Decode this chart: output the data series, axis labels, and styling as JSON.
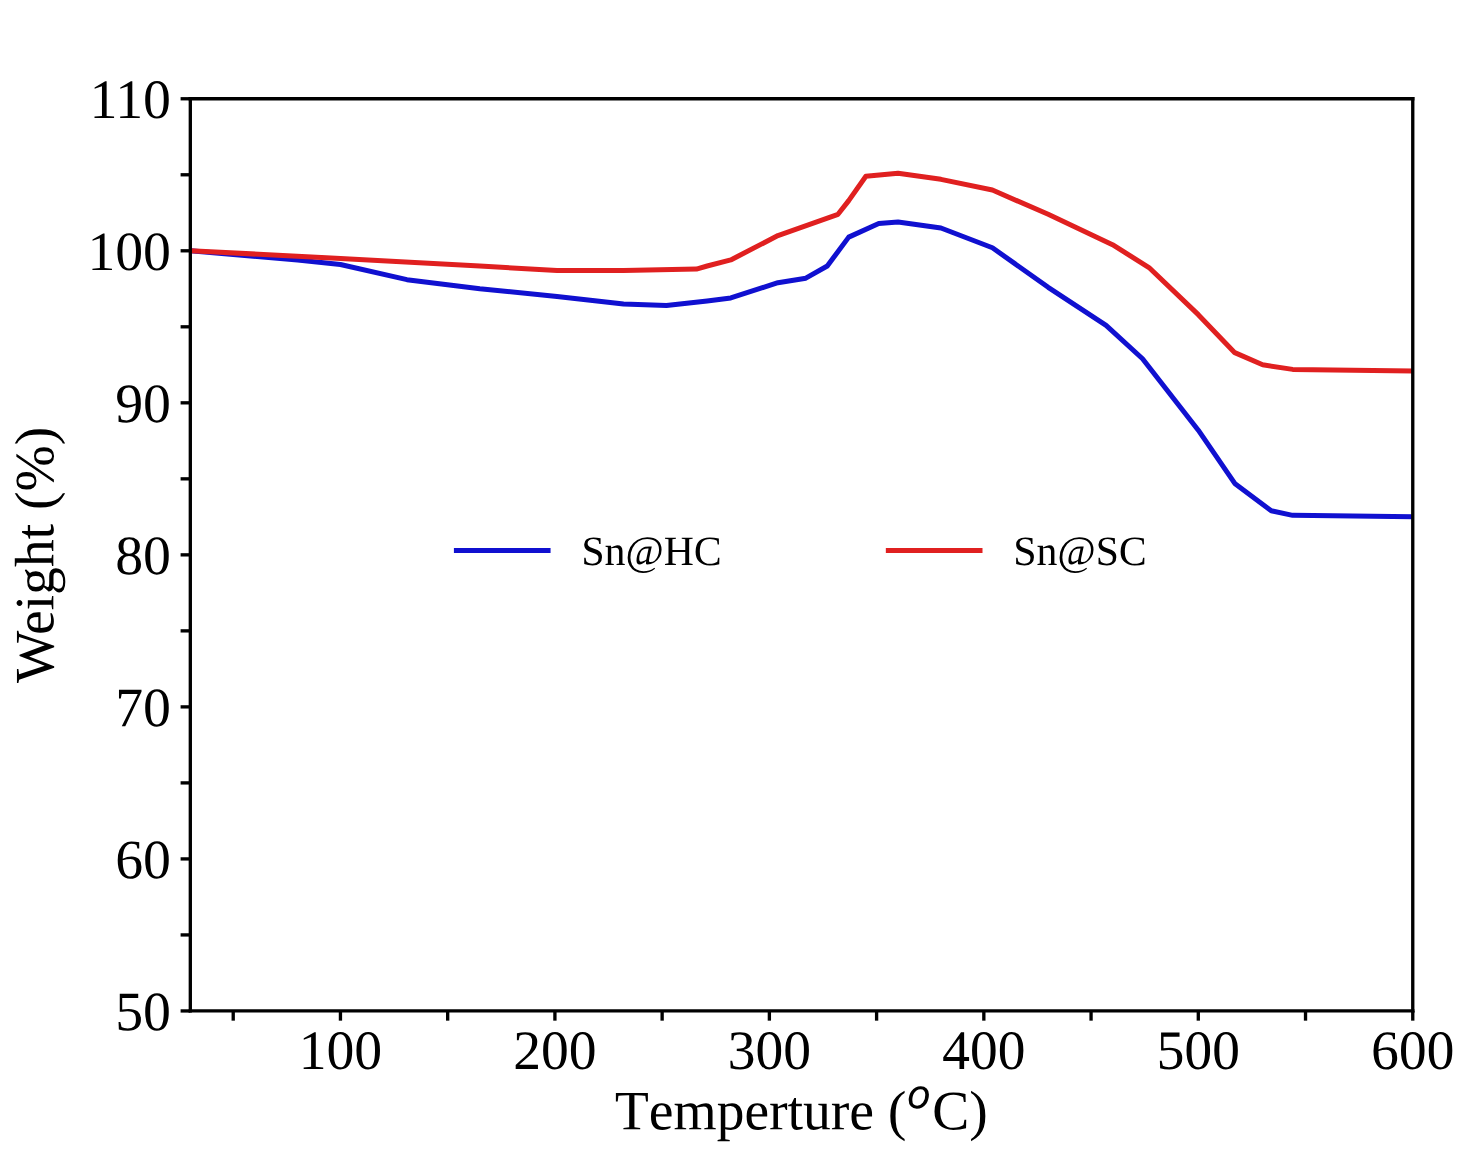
{
  "chart_data": {
    "type": "line",
    "xlabel": "Temperture ($^{o}$C)",
    "ylabel": "Weight (%)",
    "xlim": [
      30,
      600
    ],
    "ylim": [
      50,
      110
    ],
    "xticks": [
      {
        "value": 50,
        "label": null
      },
      100,
      {
        "value": 150,
        "label": null
      },
      200,
      {
        "value": 250,
        "label": null
      },
      300,
      {
        "value": 350,
        "label": null
      },
      400,
      {
        "value": 450,
        "label": null
      },
      500,
      {
        "value": 550,
        "label": null
      },
      600
    ],
    "yticks": [
      50,
      {
        "value": 55,
        "label": null
      },
      60,
      {
        "value": 65,
        "label": null
      },
      70,
      {
        "value": 75,
        "label": null
      },
      80,
      {
        "value": 85,
        "label": null
      },
      90,
      {
        "value": 95,
        "label": null
      },
      100,
      {
        "value": 105,
        "label": null
      },
      110
    ],
    "grid": false,
    "legend": "center",
    "marker": "none",
    "line_style": "solid",
    "series": [
      {
        "name": "Sn@HC",
        "color": "#1010d0",
        "x": [
          30,
          80,
          100,
          131,
          165,
          201,
          232,
          252,
          271,
          282,
          304,
          317,
          327,
          337,
          351,
          360,
          380,
          404,
          430,
          457,
          474,
          500,
          517,
          534,
          544,
          600
        ],
        "values": [
          100,
          99.4,
          99.1,
          98.1,
          97.5,
          97.0,
          96.5,
          96.4,
          96.7,
          96.9,
          97.9,
          98.2,
          99.0,
          100.9,
          101.8,
          101.9,
          101.5,
          100.2,
          97.6,
          95.1,
          92.9,
          88.2,
          84.7,
          82.9,
          82.6,
          82.5
        ]
      },
      {
        "name": "Sn@SC",
        "color": "#e02020",
        "x": [
          30,
          100,
          165,
          201,
          232,
          266,
          271,
          282,
          304,
          332,
          337,
          345,
          360,
          380,
          404,
          430,
          460,
          477,
          500,
          517,
          530,
          544,
          600
        ],
        "values": [
          100,
          99.5,
          99.0,
          98.7,
          98.7,
          98.8,
          99.0,
          99.4,
          101.0,
          102.4,
          103.3,
          104.9,
          105.1,
          104.7,
          104.0,
          102.4,
          100.4,
          98.9,
          95.8,
          93.3,
          92.5,
          92.2,
          92.1
        ]
      }
    ]
  }
}
